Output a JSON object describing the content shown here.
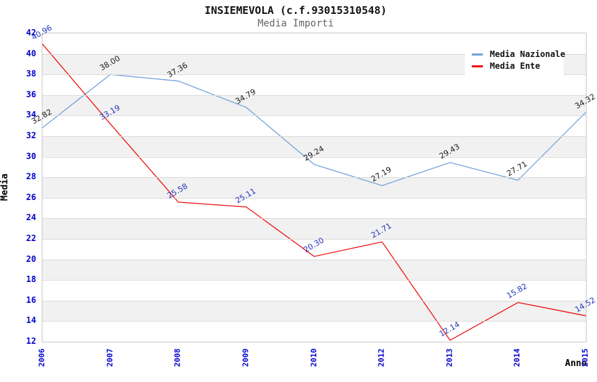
{
  "header": {
    "title": "INSIEMEVOLA (c.f.93015310548)",
    "subtitle": "Media Importi"
  },
  "chart_data": {
    "type": "line",
    "title": "INSIEMEVOLA (c.f.93015310548)",
    "subtitle": "Media Importi",
    "xlabel": "Anno",
    "ylabel": "Media",
    "categories": [
      "2006",
      "2007",
      "2008",
      "2009",
      "2010",
      "2012",
      "2013",
      "2014",
      "2015"
    ],
    "series": [
      {
        "name": "Media Nazionale",
        "color": "#74a3db",
        "label_color": "#1a1a1a",
        "values": [
          32.82,
          38.0,
          37.36,
          34.79,
          29.24,
          27.19,
          29.43,
          27.71,
          34.32
        ],
        "labels": [
          "32.82",
          "38.00",
          "37.36",
          "34.79",
          "29.24",
          "27.19",
          "29.43",
          "27.71",
          "34.32"
        ]
      },
      {
        "name": "Media Ente",
        "color": "#ee1111",
        "label_color": "#2233bb",
        "values": [
          40.96,
          33.19,
          25.58,
          25.11,
          20.3,
          21.71,
          12.14,
          15.82,
          14.52
        ],
        "labels": [
          "40.96",
          "33.19",
          "25.58",
          "25.11",
          "20.30",
          "21.71",
          "12.14",
          "15.82",
          "14.52"
        ]
      }
    ],
    "ylim": [
      12,
      42
    ],
    "ytick_step": 2,
    "yticks": [
      12,
      14,
      16,
      18,
      20,
      22,
      24,
      26,
      28,
      30,
      32,
      34,
      36,
      38,
      40,
      42
    ],
    "grid": "horizontal",
    "legend_position": "top-right",
    "colors": {
      "tick_label": "#0000cc",
      "gridline": "#dcdcdc",
      "band": "#f1f1f1",
      "plot_border": "#c9c9c9",
      "subtitle": "#666666"
    }
  }
}
